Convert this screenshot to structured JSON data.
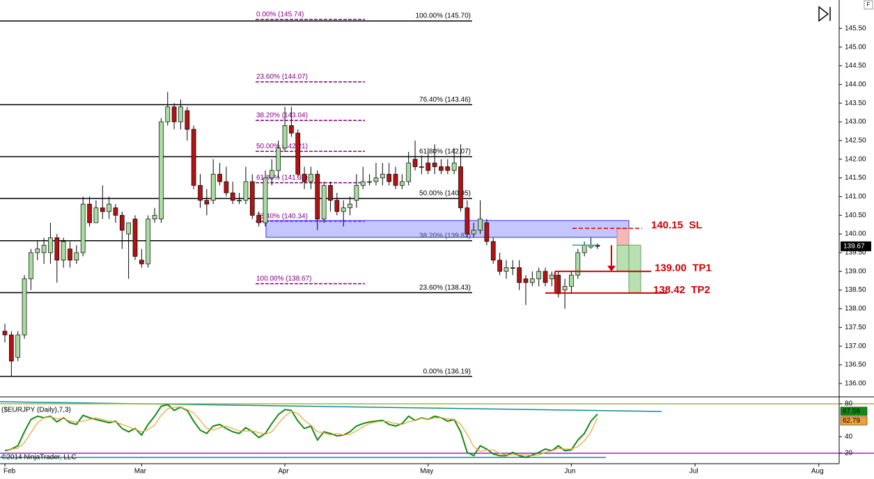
{
  "toolbar_label": "F",
  "footer": "©2014 NinjaTrader, LLC",
  "chart_data": [
    {
      "type": "candlestick",
      "up_color": "#a9dca0",
      "down_color": "#b31212",
      "categories": [
        "Feb",
        null,
        null,
        null,
        null,
        null,
        null,
        null,
        null,
        null,
        null,
        null,
        null,
        null,
        null,
        null,
        null,
        null,
        null,
        null,
        null,
        "Mar",
        null,
        null,
        null,
        null,
        null,
        null,
        null,
        null,
        null,
        null,
        null,
        null,
        null,
        null,
        null,
        null,
        null,
        null,
        null,
        null,
        null,
        "Apr",
        null,
        null,
        null,
        null,
        null,
        null,
        null,
        null,
        null,
        null,
        null,
        null,
        null,
        null,
        null,
        null,
        null,
        null,
        null,
        null,
        null,
        "May",
        null,
        null,
        null,
        null,
        null,
        null,
        null,
        null,
        null,
        null,
        null,
        null,
        null,
        null,
        null,
        null,
        null,
        null,
        null,
        null,
        null,
        "Jun",
        null,
        null,
        null,
        null,
        null,
        null,
        null,
        null,
        null,
        null,
        null,
        null,
        null,
        null,
        null,
        null,
        null,
        null,
        "Jul",
        null,
        null,
        null,
        null,
        null,
        null,
        null,
        null,
        null,
        null,
        null,
        null,
        null,
        null,
        null,
        null,
        null,
        null,
        "Aug",
        null
      ],
      "open": [
        137.4,
        137.3,
        136.7,
        137.3,
        138.8,
        139.5,
        139.5,
        139.5,
        139.9,
        139.3,
        139.6,
        139.3,
        139.5,
        140.8,
        140.3,
        140.7,
        140.6,
        140.7,
        140.5,
        140.0,
        140.4,
        139.3,
        139.2,
        140.4,
        140.4,
        143.0,
        143.4,
        143.0,
        143.3,
        142.8,
        141.3,
        140.9,
        140.9,
        141.6,
        141.4,
        141.1,
        140.9,
        140.9,
        141.4,
        140.5,
        140.3,
        141.5,
        141.7,
        142.3,
        142.9,
        142.7,
        141.6,
        141.4,
        141.6,
        140.4,
        141.3,
        140.9,
        140.6,
        140.7,
        140.9,
        141.3,
        141.4,
        141.4,
        141.5,
        141.6,
        141.6,
        141.3,
        141.4,
        142.0,
        141.8,
        141.9,
        141.9,
        141.8,
        141.8,
        141.7,
        141.8,
        140.7,
        140.0,
        140.1,
        140.3,
        139.8,
        139.3,
        139.0,
        139.1,
        139.1,
        138.8,
        138.7,
        138.8,
        139.0,
        138.8,
        138.9,
        138.5,
        138.6,
        138.9,
        139.5,
        139.65,
        139.7,
        null,
        null,
        null,
        null,
        null,
        null,
        null,
        null,
        null,
        null,
        null,
        null,
        null,
        null,
        null,
        null,
        null,
        null,
        null,
        null,
        null,
        null,
        null,
        null,
        null,
        null,
        null,
        null,
        null,
        null,
        null,
        null,
        null,
        null,
        null
      ],
      "high": [
        137.6,
        137.4,
        137.4,
        138.9,
        139.6,
        139.8,
        139.9,
        140.3,
        140.0,
        139.9,
        139.8,
        139.7,
        141.0,
        141.0,
        140.9,
        141.3,
        141.0,
        140.8,
        140.6,
        140.3,
        140.5,
        139.6,
        140.5,
        140.7,
        143.1,
        143.8,
        143.5,
        143.6,
        143.4,
        142.9,
        141.6,
        141.2,
        142.0,
        141.9,
        141.8,
        141.4,
        141.1,
        141.8,
        141.6,
        140.6,
        141.7,
        142.0,
        142.5,
        143.4,
        143.4,
        142.8,
        141.8,
        141.8,
        141.7,
        141.4,
        141.4,
        141.1,
        140.9,
        141.0,
        141.6,
        141.8,
        141.6,
        141.9,
        141.9,
        141.9,
        141.8,
        141.6,
        142.2,
        142.5,
        142.1,
        142.3,
        142.4,
        142.0,
        142.0,
        142.3,
        142.4,
        140.9,
        140.3,
        140.9,
        140.4,
        139.9,
        139.5,
        139.3,
        139.3,
        139.3,
        138.9,
        139.0,
        139.1,
        139.1,
        139.0,
        139.0,
        138.8,
        139.0,
        139.6,
        139.8,
        139.9,
        139.75,
        null,
        null,
        null,
        null,
        null,
        null,
        null,
        null,
        null,
        null,
        null,
        null,
        null,
        null,
        null,
        null,
        null,
        null,
        null,
        null,
        null,
        null,
        null,
        null,
        null,
        null,
        null,
        null,
        null,
        null,
        null,
        null,
        null,
        null,
        null
      ],
      "low": [
        137.1,
        136.2,
        136.6,
        137.2,
        138.5,
        139.3,
        139.2,
        139.2,
        138.7,
        139.1,
        139.1,
        139.2,
        139.4,
        140.2,
        140.3,
        140.4,
        140.4,
        140.3,
        139.6,
        138.8,
        139.3,
        139.1,
        139.1,
        140.3,
        140.3,
        142.9,
        142.8,
        142.8,
        142.5,
        141.2,
        140.7,
        140.5,
        140.8,
        141.3,
        141.0,
        140.8,
        140.8,
        140.8,
        140.4,
        140.2,
        140.2,
        141.3,
        141.5,
        142.2,
        142.6,
        141.5,
        141.2,
        141.2,
        140.1,
        140.3,
        140.6,
        140.5,
        140.2,
        140.5,
        140.7,
        141.2,
        141.3,
        141.3,
        141.3,
        141.3,
        141.2,
        141.2,
        141.3,
        141.7,
        141.6,
        141.6,
        141.6,
        141.6,
        141.6,
        141.6,
        140.6,
        139.9,
        139.9,
        140.0,
        139.7,
        139.2,
        138.9,
        138.8,
        138.9,
        138.5,
        138.1,
        138.6,
        138.6,
        138.6,
        138.6,
        138.3,
        138.0,
        138.4,
        138.8,
        139.4,
        139.6,
        139.6,
        null,
        null,
        null,
        null,
        null,
        null,
        null,
        null,
        null,
        null,
        null,
        null,
        null,
        null,
        null,
        null,
        null,
        null,
        null,
        null,
        null,
        null,
        null,
        null,
        null,
        null,
        null,
        null,
        null,
        null,
        null,
        null,
        null,
        null,
        null
      ],
      "close": [
        137.3,
        136.6,
        137.3,
        138.8,
        139.5,
        139.6,
        139.7,
        139.9,
        139.3,
        139.8,
        139.3,
        139.5,
        140.8,
        140.3,
        140.7,
        140.6,
        140.8,
        140.5,
        140.1,
        140.3,
        139.4,
        139.2,
        140.4,
        140.5,
        143.0,
        143.4,
        143.0,
        143.4,
        142.8,
        141.3,
        140.9,
        140.8,
        141.6,
        141.4,
        141.1,
        140.9,
        140.9,
        141.4,
        140.5,
        140.3,
        141.5,
        141.7,
        142.3,
        142.9,
        142.7,
        141.6,
        141.4,
        141.6,
        140.4,
        141.3,
        140.9,
        140.6,
        140.7,
        140.8,
        141.3,
        141.4,
        141.4,
        141.5,
        141.6,
        141.4,
        141.3,
        141.4,
        141.9,
        141.8,
        141.8,
        141.7,
        141.8,
        141.7,
        141.7,
        141.9,
        140.7,
        140.0,
        140.1,
        140.4,
        139.8,
        139.3,
        139.0,
        139.1,
        139.1,
        138.7,
        138.7,
        138.8,
        139.0,
        138.7,
        138.9,
        138.4,
        138.6,
        138.9,
        139.5,
        139.7,
        139.7,
        139.67,
        null,
        null,
        null,
        null,
        null,
        null,
        null,
        null,
        null,
        null,
        null,
        null,
        null,
        null,
        null,
        null,
        null,
        null,
        null,
        null,
        null,
        null,
        null,
        null,
        null,
        null,
        null,
        null,
        null,
        null,
        null,
        null,
        null,
        null,
        null
      ],
      "ylim": [
        135.68,
        146.26
      ],
      "yticks": [
        {
          "value": 136,
          "label": "136.00"
        },
        {
          "value": 136.5,
          "label": "136.50"
        },
        {
          "value": 137,
          "label": "137.00"
        },
        {
          "value": 137.5,
          "label": "137.50"
        },
        {
          "value": 138,
          "label": "138.00"
        },
        {
          "value": 138.5,
          "label": "138.50"
        },
        {
          "value": 139,
          "label": "139.00"
        },
        {
          "value": 139.5,
          "label": "139.50"
        },
        {
          "value": 140,
          "label": "140.00"
        },
        {
          "value": 140.5,
          "label": "140.50"
        },
        {
          "value": 141,
          "label": "141.00"
        },
        {
          "value": 141.5,
          "label": "141.50"
        },
        {
          "value": 142,
          "label": "142.00"
        },
        {
          "value": 142.5,
          "label": "142.50"
        },
        {
          "value": 143,
          "label": "143.00"
        },
        {
          "value": 143.5,
          "label": "143.50"
        },
        {
          "value": 144,
          "label": "144.00"
        },
        {
          "value": 144.5,
          "label": "144.50"
        },
        {
          "value": 145,
          "label": "145.00"
        },
        {
          "value": 145.5,
          "label": "145.50"
        }
      ],
      "fib_sets": [
        {
          "color": "#000000",
          "dashed": false,
          "levels": [
            {
              "value": 145.7,
              "label": "100.00% (145.70)"
            },
            {
              "value": 143.46,
              "label": "76.40% (143.46)"
            },
            {
              "value": 142.07,
              "label": "61.80% (142.07)"
            },
            {
              "value": 140.95,
              "label": "50.00% (140.95)"
            },
            {
              "value": 139.82,
              "label": "38.20% (139.82)"
            },
            {
              "value": 138.43,
              "label": "23.60% (138.43)"
            },
            {
              "value": 136.19,
              "label": "0.00% (136.19)"
            }
          ]
        },
        {
          "color": "#800080",
          "dashed": true,
          "levels": [
            {
              "value": 145.74,
              "label": "0.00% (145.74)"
            },
            {
              "value": 144.07,
              "label": "23.60% (144.07)"
            },
            {
              "value": 143.04,
              "label": "38.20% (143.04)"
            },
            {
              "value": 142.21,
              "label": "50.00% (142.21)"
            },
            {
              "value": 141.37,
              "label": "61.80% (141.37)"
            },
            {
              "value": 140.34,
              "label": "76.40% (140.34)"
            },
            {
              "value": 138.67,
              "label": "100.00% (138.67)"
            }
          ]
        }
      ],
      "zone": {
        "from": 139.91,
        "to": 140.36,
        "color": "#8080ff"
      },
      "trade": {
        "entry": 139.7,
        "stop": {
          "value": 140.15,
          "label": "140.15  SL"
        },
        "targets": [
          {
            "value": 139.0,
            "label": "139.00  TP1"
          },
          {
            "value": 138.42,
            "label": "138.42  TP2"
          }
        ],
        "color": "#d00000"
      }
    },
    {
      "type": "line",
      "title": "($EURJPY (Daily),7,3)",
      "ylim": [
        9.8,
        86.8
      ],
      "yticks": [
        20,
        40,
        80
      ],
      "bands": [
        {
          "value": 80,
          "color": "#a0b830"
        },
        {
          "value": 20,
          "color": "#a020c0"
        }
      ],
      "series": [
        {
          "color": "#128a12",
          "values": [
            23,
            25,
            29,
            46,
            61,
            65,
            63,
            65,
            58,
            63,
            57,
            55,
            66,
            63,
            61,
            59,
            57,
            59,
            50,
            46,
            50,
            42,
            55,
            65,
            77,
            79,
            72,
            76,
            72,
            59,
            48,
            44,
            53,
            55,
            50,
            46,
            44,
            51,
            46,
            39,
            44,
            56,
            67,
            73,
            72,
            59,
            50,
            53,
            36,
            46,
            44,
            41,
            42,
            46,
            53,
            56,
            58,
            59,
            60,
            55,
            53,
            56,
            65,
            60,
            63,
            61,
            65,
            63,
            59,
            61,
            46,
            21,
            17,
            29,
            25,
            19,
            17,
            17,
            21,
            17,
            15,
            18,
            21,
            25,
            23,
            29,
            23,
            24,
            36,
            44,
            59,
            67.56,
            null,
            null,
            null,
            null,
            null,
            null,
            null,
            null,
            null,
            null,
            null,
            null,
            null,
            null,
            null,
            null,
            null,
            null,
            null,
            null,
            null,
            null,
            null,
            null,
            null,
            null,
            null,
            null,
            null,
            null,
            null,
            null,
            null,
            null,
            null
          ]
        },
        {
          "color": "#f0a030",
          "values": [
            24,
            25,
            26,
            33,
            45,
            57,
            63,
            64,
            62,
            62,
            59,
            58,
            59,
            61,
            63,
            61,
            59,
            58,
            55,
            52,
            49,
            46,
            49,
            54,
            66,
            74,
            76,
            76,
            73,
            69,
            60,
            50,
            48,
            51,
            53,
            50,
            47,
            47,
            47,
            45,
            43,
            46,
            56,
            65,
            71,
            68,
            60,
            54,
            46,
            45,
            42,
            44,
            42,
            43,
            47,
            52,
            56,
            58,
            59,
            58,
            56,
            55,
            58,
            60,
            63,
            61,
            63,
            63,
            62,
            61,
            55,
            43,
            28,
            22,
            24,
            24,
            20,
            18,
            18,
            18,
            18,
            17,
            18,
            21,
            23,
            26,
            25,
            25,
            28,
            35,
            46,
            62.79,
            null,
            null,
            null,
            null,
            null,
            null,
            null,
            null,
            null,
            null,
            null,
            null,
            null,
            null,
            null,
            null,
            null,
            null,
            null,
            null,
            null,
            null,
            null,
            null,
            null,
            null,
            null,
            null,
            null,
            null,
            null,
            null,
            null,
            null,
            null
          ]
        }
      ]
    }
  ]
}
